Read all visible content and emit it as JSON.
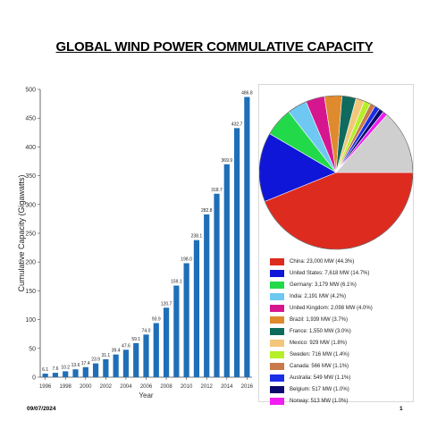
{
  "slide": {
    "title": "GLOBAL WIND POWER COMMULATIVE CAPACITY",
    "footer_date": "09/07/2024",
    "page_number": "1"
  },
  "chart_data": [
    {
      "type": "bar",
      "xlabel": "Year",
      "ylabel": "Cumulative Capacity (Gigawatts)",
      "ylim": [
        0,
        500
      ],
      "yticks": [
        0,
        50,
        100,
        150,
        200,
        250,
        300,
        350,
        400,
        450,
        500
      ],
      "categories": [
        "1996",
        "1997",
        "1998",
        "1999",
        "2000",
        "2001",
        "2002",
        "2003",
        "2004",
        "2005",
        "2006",
        "2007",
        "2008",
        "2009",
        "2010",
        "2011",
        "2012",
        "2013",
        "2014",
        "2015",
        "2016"
      ],
      "xtick_labels": [
        "1996",
        "1998",
        "2000",
        "2002",
        "2004",
        "2006",
        "2008",
        "2010",
        "2012",
        "2014",
        "2016"
      ],
      "values": [
        6.1,
        7.6,
        10.2,
        13.6,
        17.4,
        23.9,
        31.1,
        39.4,
        47.6,
        59.1,
        74.0,
        93.9,
        120.7,
        159.1,
        198.0,
        238.1,
        282.8,
        318.7,
        369.9,
        432.7,
        486.8
      ],
      "value_labels": [
        "6.1",
        "7.6",
        "10.2",
        "13.6",
        "17.4",
        "23.9",
        "31.1",
        "39.4",
        "47.6",
        "59.1",
        "74.0",
        "93.9",
        "120.7",
        "159.1",
        "198.0",
        "238.1",
        "282.8",
        "318.7",
        "369.9",
        "432.7",
        "486.8"
      ],
      "grid": false,
      "bar_color": "#1f6fb8"
    },
    {
      "type": "pie",
      "legend_position": "bottom",
      "slices": [
        {
          "label": "China: 23,000 MW (44.3%)",
          "value": 44.3,
          "color": "#dd2b20"
        },
        {
          "label": "United States: 7,618 MW (14.7%)",
          "value": 14.7,
          "color": "#1016d8"
        },
        {
          "label": "Germany: 3,179 MW (6.1%)",
          "value": 6.1,
          "color": "#22d94a"
        },
        {
          "label": "India: 2,191 MW (4.2%)",
          "value": 4.2,
          "color": "#6ec8f2"
        },
        {
          "label": "United Kingdom: 2,098 MW (4.0%)",
          "value": 4.0,
          "color": "#d6168f"
        },
        {
          "label": "Brazil: 1,939 MW (3.7%)",
          "value": 3.7,
          "color": "#e08a2e"
        },
        {
          "label": "France: 1,550 MW (3.0%)",
          "value": 3.0,
          "color": "#0e6b5e"
        },
        {
          "label": "Mexico: 929 MW (1.8%)",
          "value": 1.8,
          "color": "#f2c77a"
        },
        {
          "label": "Sweden: 716 MW (1.4%)",
          "value": 1.4,
          "color": "#b6ef2a"
        },
        {
          "label": "Canada: 566 MW (1.1%)",
          "value": 1.1,
          "color": "#c87a4a"
        },
        {
          "label": "Australia: 549 MW (1.1%)",
          "value": 1.1,
          "color": "#1a2ee6"
        },
        {
          "label": "Belgium: 517 MW (1.0%)",
          "value": 1.0,
          "color": "#0a0a6e"
        },
        {
          "label": "Norway: 513 MW (1.0%)",
          "value": 1.0,
          "color": "#f01ef0"
        },
        {
          "label": "",
          "value": 13.6,
          "color": "#cfcfcf"
        }
      ]
    }
  ]
}
